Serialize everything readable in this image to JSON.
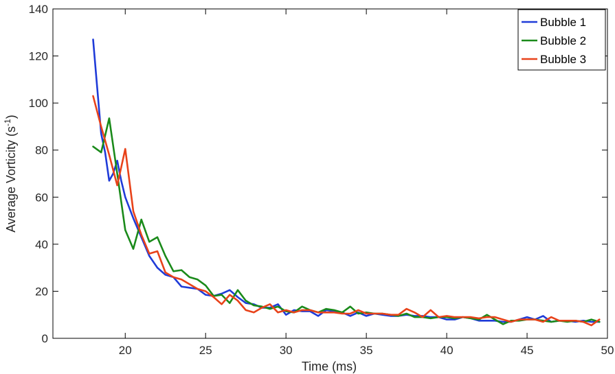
{
  "chart_data": {
    "type": "line",
    "title": "",
    "xlabel": "Time (ms)",
    "ylabel": "Average Vorticity (s",
    "ylabel_sup": "-1",
    "ylabel_close": ")",
    "xlim": [
      15.5,
      50
    ],
    "ylim": [
      0,
      140
    ],
    "xticks": [
      20,
      25,
      30,
      35,
      40,
      45,
      50
    ],
    "yticks": [
      0,
      20,
      40,
      60,
      80,
      100,
      120,
      140
    ],
    "grid": false,
    "legend": "top-right",
    "series": [
      {
        "name": "Bubble 1",
        "color": "#1f3bd8",
        "points": [
          [
            18.0,
            127
          ],
          [
            18.25,
            107
          ],
          [
            18.5,
            87
          ],
          [
            18.75,
            79
          ],
          [
            19.0,
            67
          ],
          [
            19.25,
            70
          ],
          [
            19.5,
            75.5
          ],
          [
            19.75,
            67
          ],
          [
            20.0,
            60
          ],
          [
            20.5,
            51
          ],
          [
            21.0,
            43
          ],
          [
            21.5,
            35
          ],
          [
            22.0,
            30
          ],
          [
            22.5,
            27
          ],
          [
            23.0,
            26
          ],
          [
            23.5,
            22
          ],
          [
            24.0,
            21.5
          ],
          [
            24.5,
            21
          ],
          [
            25.0,
            18.5
          ],
          [
            25.5,
            18
          ],
          [
            26.0,
            19
          ],
          [
            26.5,
            20.5
          ],
          [
            27.0,
            17.5
          ],
          [
            27.5,
            15
          ],
          [
            28.0,
            14.5
          ],
          [
            28.5,
            13
          ],
          [
            29.0,
            13
          ],
          [
            29.5,
            14.5
          ],
          [
            30.0,
            10
          ],
          [
            30.5,
            12
          ],
          [
            31.0,
            11.5
          ],
          [
            31.5,
            11.5
          ],
          [
            32.0,
            9.5
          ],
          [
            32.5,
            12
          ],
          [
            33.0,
            11.5
          ],
          [
            33.5,
            11
          ],
          [
            34.0,
            9.5
          ],
          [
            34.5,
            11
          ],
          [
            35.0,
            9.5
          ],
          [
            35.5,
            10.5
          ],
          [
            36.0,
            10
          ],
          [
            36.5,
            9.5
          ],
          [
            37.0,
            9.5
          ],
          [
            37.5,
            10
          ],
          [
            38.0,
            9.5
          ],
          [
            38.5,
            9.5
          ],
          [
            39.0,
            9
          ],
          [
            39.5,
            9
          ],
          [
            40.0,
            8
          ],
          [
            40.5,
            8
          ],
          [
            41.0,
            9
          ],
          [
            41.5,
            8.5
          ],
          [
            42.0,
            7.5
          ],
          [
            42.5,
            7.5
          ],
          [
            43.0,
            7.5
          ],
          [
            43.5,
            7
          ],
          [
            44.0,
            7
          ],
          [
            44.5,
            8
          ],
          [
            45.0,
            9
          ],
          [
            45.5,
            8
          ],
          [
            46.0,
            9.5
          ],
          [
            46.5,
            7
          ],
          [
            47.0,
            7.5
          ],
          [
            47.5,
            7.5
          ],
          [
            48.0,
            7
          ],
          [
            48.5,
            7.5
          ],
          [
            49.0,
            7
          ],
          [
            49.5,
            7
          ]
        ]
      },
      {
        "name": "Bubble 2",
        "color": "#1a8a1a",
        "points": [
          [
            18.0,
            81.5
          ],
          [
            18.5,
            79
          ],
          [
            19.0,
            93.5
          ],
          [
            19.5,
            70
          ],
          [
            20.0,
            46
          ],
          [
            20.5,
            38
          ],
          [
            21.0,
            50.5
          ],
          [
            21.5,
            41
          ],
          [
            22.0,
            43
          ],
          [
            22.5,
            35
          ],
          [
            23.0,
            28.5
          ],
          [
            23.5,
            29
          ],
          [
            24.0,
            26
          ],
          [
            24.5,
            25
          ],
          [
            25.0,
            22.5
          ],
          [
            25.5,
            18
          ],
          [
            26.0,
            18.5
          ],
          [
            26.5,
            15
          ],
          [
            27.0,
            20.5
          ],
          [
            27.5,
            16
          ],
          [
            28.0,
            14
          ],
          [
            28.5,
            13.5
          ],
          [
            29.0,
            12.5
          ],
          [
            29.5,
            13.5
          ],
          [
            30.0,
            11.5
          ],
          [
            30.5,
            11
          ],
          [
            31.0,
            13.5
          ],
          [
            31.5,
            12
          ],
          [
            32.0,
            11
          ],
          [
            32.5,
            12.5
          ],
          [
            33.0,
            12
          ],
          [
            33.5,
            11
          ],
          [
            34.0,
            13.5
          ],
          [
            34.5,
            10.5
          ],
          [
            35.0,
            11
          ],
          [
            35.5,
            10.5
          ],
          [
            36.0,
            10.5
          ],
          [
            36.5,
            10
          ],
          [
            37.0,
            9.5
          ],
          [
            37.5,
            10.5
          ],
          [
            38.0,
            9
          ],
          [
            38.5,
            9
          ],
          [
            39.0,
            8.5
          ],
          [
            39.5,
            9
          ],
          [
            40.0,
            9
          ],
          [
            40.5,
            8.5
          ],
          [
            41.0,
            9
          ],
          [
            41.5,
            8.5
          ],
          [
            42.0,
            8
          ],
          [
            42.5,
            10
          ],
          [
            43.0,
            8
          ],
          [
            43.5,
            6
          ],
          [
            44.0,
            7.5
          ],
          [
            44.5,
            7.5
          ],
          [
            45.0,
            8
          ],
          [
            45.5,
            8
          ],
          [
            46.0,
            7.5
          ],
          [
            46.5,
            7
          ],
          [
            47.0,
            7.5
          ],
          [
            47.5,
            7
          ],
          [
            48.0,
            7.5
          ],
          [
            48.5,
            7
          ],
          [
            49.0,
            8
          ],
          [
            49.5,
            7
          ]
        ]
      },
      {
        "name": "Bubble 3",
        "color": "#e8421a",
        "points": [
          [
            18.0,
            103
          ],
          [
            18.5,
            90
          ],
          [
            19.0,
            78
          ],
          [
            19.5,
            65
          ],
          [
            20.0,
            80.5
          ],
          [
            20.5,
            54
          ],
          [
            21.0,
            44
          ],
          [
            21.5,
            36
          ],
          [
            22.0,
            37
          ],
          [
            22.5,
            28
          ],
          [
            23.0,
            26
          ],
          [
            23.5,
            25
          ],
          [
            24.0,
            23
          ],
          [
            24.5,
            21
          ],
          [
            25.0,
            20
          ],
          [
            25.5,
            17.5
          ],
          [
            26.0,
            14.5
          ],
          [
            26.5,
            18.5
          ],
          [
            27.0,
            16
          ],
          [
            27.5,
            12
          ],
          [
            28.0,
            11
          ],
          [
            28.5,
            13
          ],
          [
            29.0,
            14.5
          ],
          [
            29.5,
            11
          ],
          [
            30.0,
            12
          ],
          [
            30.5,
            11
          ],
          [
            31.0,
            12
          ],
          [
            31.5,
            12
          ],
          [
            32.0,
            11
          ],
          [
            32.5,
            11
          ],
          [
            33.0,
            11
          ],
          [
            33.5,
            10.5
          ],
          [
            34.0,
            10.5
          ],
          [
            34.5,
            12
          ],
          [
            35.0,
            10.5
          ],
          [
            35.5,
            10.5
          ],
          [
            36.0,
            10.5
          ],
          [
            36.5,
            10
          ],
          [
            37.0,
            10
          ],
          [
            37.5,
            12.5
          ],
          [
            38.0,
            11
          ],
          [
            38.5,
            9
          ],
          [
            39.0,
            12
          ],
          [
            39.5,
            9
          ],
          [
            40.0,
            9.5
          ],
          [
            40.5,
            9
          ],
          [
            41.0,
            9
          ],
          [
            41.5,
            9
          ],
          [
            42.0,
            8.5
          ],
          [
            42.5,
            9
          ],
          [
            43.0,
            9
          ],
          [
            43.5,
            8
          ],
          [
            44.0,
            7
          ],
          [
            44.5,
            8
          ],
          [
            45.0,
            8
          ],
          [
            45.5,
            8
          ],
          [
            46.0,
            7
          ],
          [
            46.5,
            9
          ],
          [
            47.0,
            7.5
          ],
          [
            47.5,
            7.5
          ],
          [
            48.0,
            7.5
          ],
          [
            48.5,
            7
          ],
          [
            49.0,
            5.5
          ],
          [
            49.5,
            8
          ]
        ]
      }
    ]
  }
}
